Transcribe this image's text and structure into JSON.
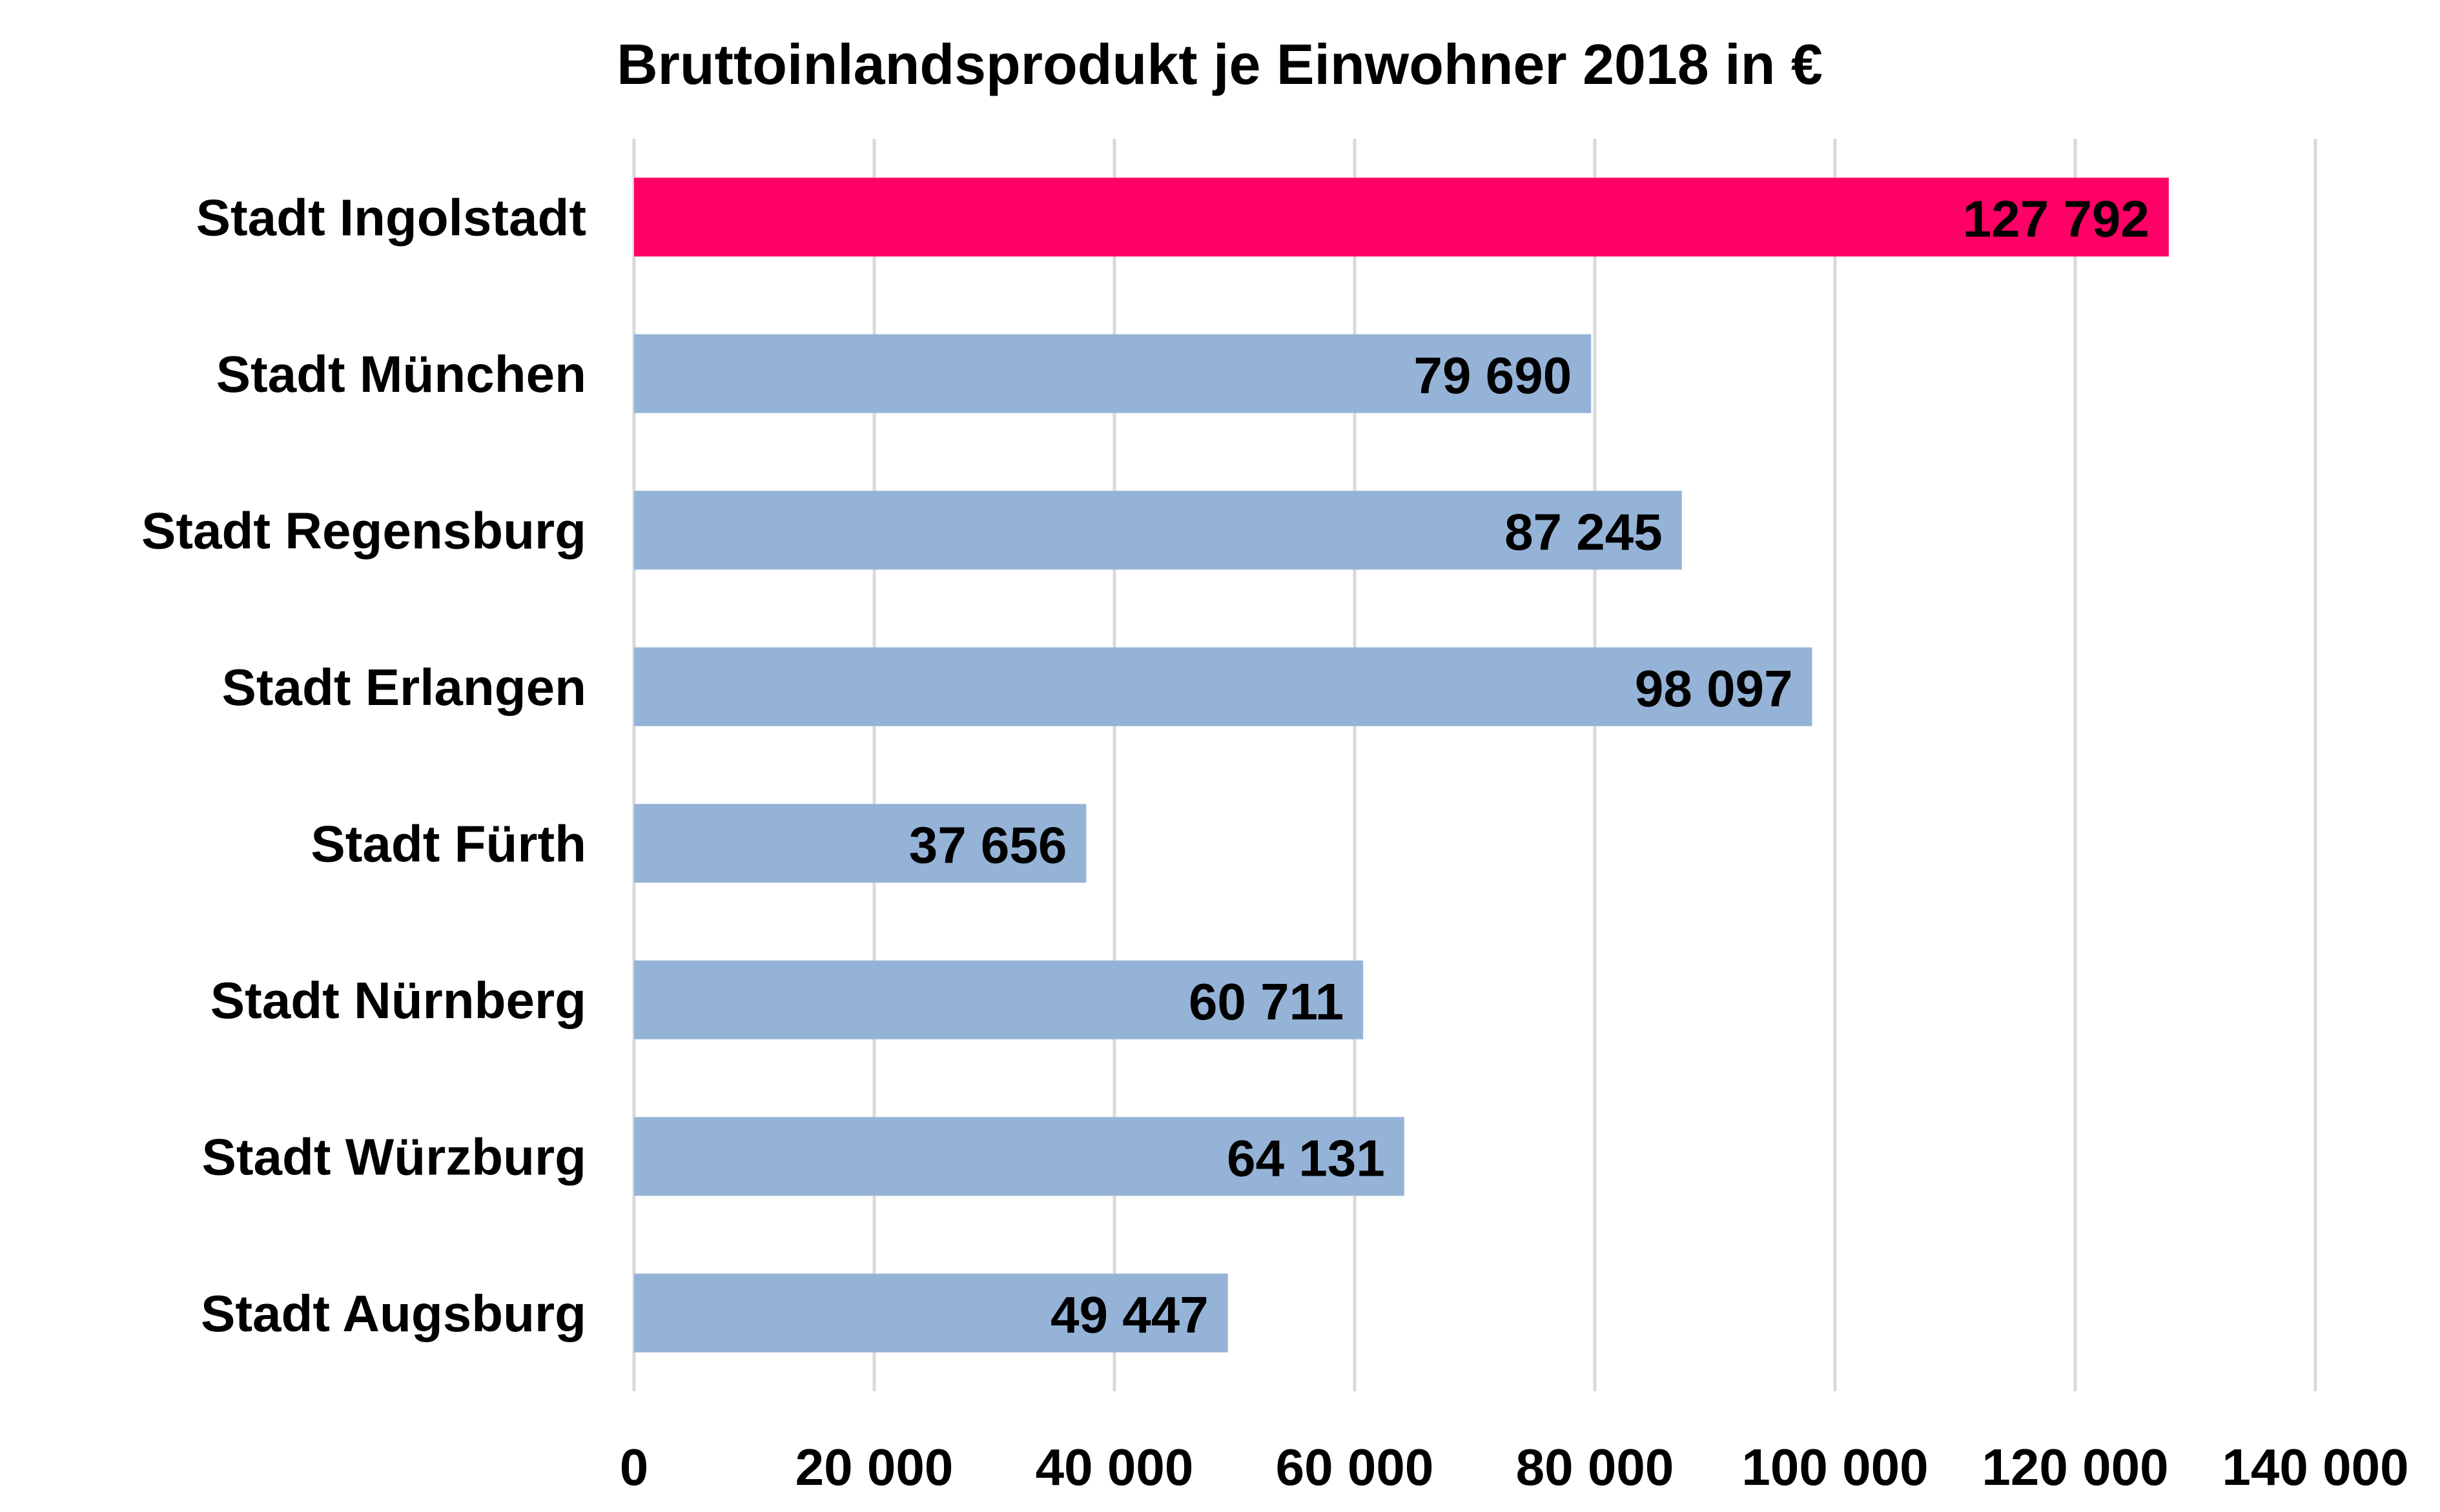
{
  "chart_data": {
    "type": "bar",
    "orientation": "horizontal",
    "title": "Bruttoinlandsprodukt je Einwohner 2018 in €",
    "xlabel": "",
    "ylabel": "",
    "categories": [
      "Stadt Ingolstadt",
      "Stadt München",
      "Stadt Regensburg",
      "Stadt Erlangen",
      "Stadt Fürth",
      "Stadt Nürnberg",
      "Stadt Würzburg",
      "Stadt Augsburg"
    ],
    "values": [
      127792,
      79690,
      87245,
      98097,
      37656,
      60711,
      64131,
      49447
    ],
    "value_labels": [
      "127 792",
      "79 690",
      "87 245",
      "98 097",
      "37 656",
      "60 711",
      "64 131",
      "49 447"
    ],
    "xlim": [
      0,
      140000
    ],
    "ticks": [
      0,
      20000,
      40000,
      60000,
      80000,
      100000,
      120000,
      140000
    ],
    "tick_labels": [
      "0",
      "20 000",
      "40 000",
      "60 000",
      "80 000",
      "100 000",
      "120 000",
      "140 000"
    ],
    "grid": true,
    "legend": "none",
    "colors": {
      "highlight": "#ff0066",
      "default": "#95b3d7",
      "grid": "#d9d9d9",
      "text": "#000000"
    },
    "highlight_category": "Stadt Ingolstadt"
  }
}
